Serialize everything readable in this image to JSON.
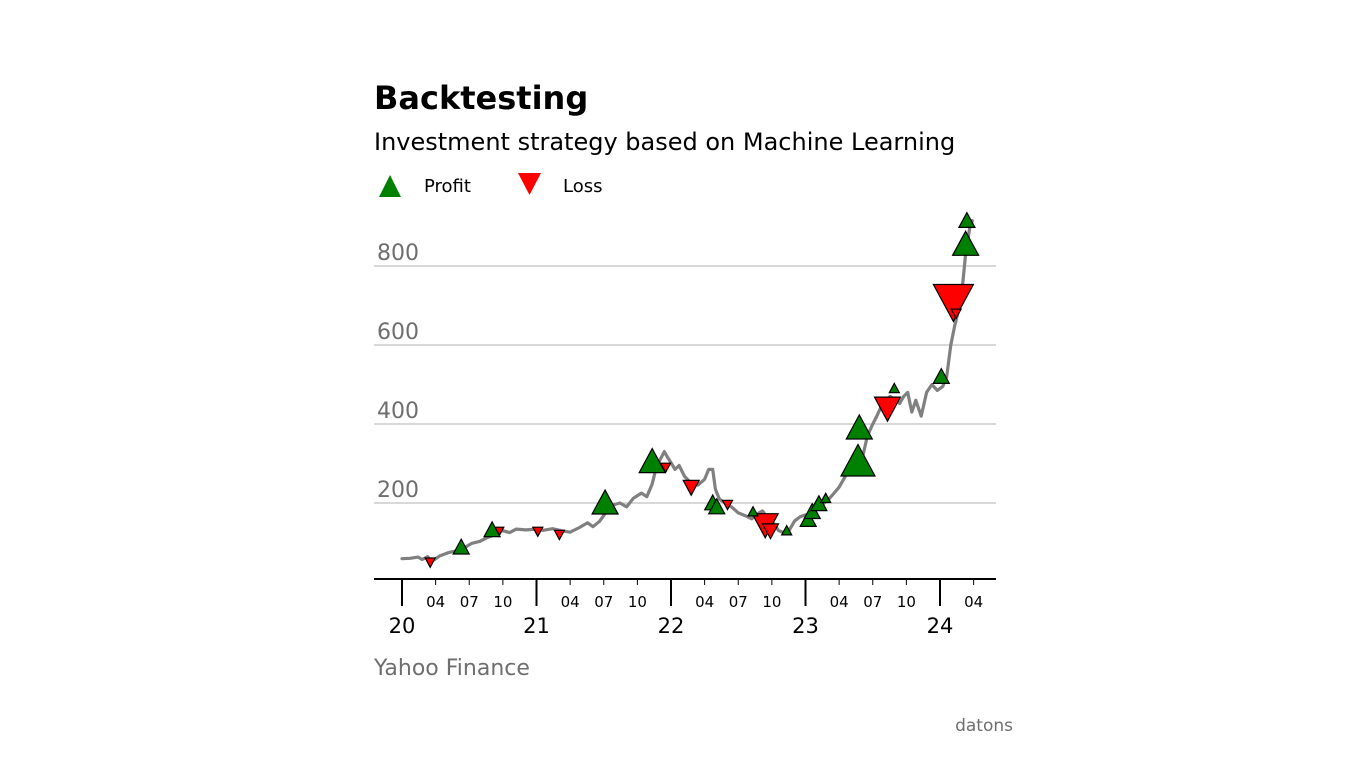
{
  "chart_data": {
    "type": "line",
    "title": "Backtesting",
    "subtitle": "Investment strategy based on Machine Learning",
    "legend": [
      {
        "label": "Profit",
        "marker": "triangle-up",
        "color": "#008000"
      },
      {
        "label": "Loss",
        "marker": "triangle-down",
        "color": "#ff0000"
      }
    ],
    "legend_placement": "top-left",
    "ylim": [
      0,
      950
    ],
    "yticks": [
      200,
      400,
      600,
      800
    ],
    "grid": "horizontal",
    "x_range": [
      "2020-01",
      "2024-06"
    ],
    "x_major_ticks": [
      {
        "x": 2020.0,
        "label": "20"
      },
      {
        "x": 2021.0,
        "label": "21"
      },
      {
        "x": 2022.0,
        "label": "22"
      },
      {
        "x": 2023.0,
        "label": "23"
      },
      {
        "x": 2024.0,
        "label": "24"
      }
    ],
    "x_minor_ticks": [
      {
        "x": 2020.25,
        "label": "04"
      },
      {
        "x": 2020.5,
        "label": "07"
      },
      {
        "x": 2020.75,
        "label": "10"
      },
      {
        "x": 2021.25,
        "label": "04"
      },
      {
        "x": 2021.5,
        "label": "07"
      },
      {
        "x": 2021.75,
        "label": "10"
      },
      {
        "x": 2022.25,
        "label": "04"
      },
      {
        "x": 2022.5,
        "label": "07"
      },
      {
        "x": 2022.75,
        "label": "10"
      },
      {
        "x": 2023.25,
        "label": "04"
      },
      {
        "x": 2023.5,
        "label": "07"
      },
      {
        "x": 2023.75,
        "label": "10"
      },
      {
        "x": 2024.25,
        "label": "04"
      }
    ],
    "series": [
      {
        "line_color": "#808080",
        "points": [
          [
            2020.0,
            59
          ],
          [
            2020.06,
            60
          ],
          [
            2020.12,
            63
          ],
          [
            2020.15,
            57
          ],
          [
            2020.19,
            64
          ],
          [
            2020.22,
            52
          ],
          [
            2020.28,
            66
          ],
          [
            2020.35,
            75
          ],
          [
            2020.42,
            80
          ],
          [
            2020.47,
            88
          ],
          [
            2020.52,
            98
          ],
          [
            2020.58,
            103
          ],
          [
            2020.63,
            112
          ],
          [
            2020.67,
            117
          ],
          [
            2020.71,
            124
          ],
          [
            2020.75,
            130
          ],
          [
            2020.8,
            125
          ],
          [
            2020.85,
            134
          ],
          [
            2020.92,
            132
          ],
          [
            2021.0,
            134
          ],
          [
            2021.05,
            131
          ],
          [
            2021.12,
            135
          ],
          [
            2021.18,
            130
          ],
          [
            2021.25,
            126
          ],
          [
            2021.32,
            138
          ],
          [
            2021.38,
            150
          ],
          [
            2021.42,
            140
          ],
          [
            2021.47,
            154
          ],
          [
            2021.52,
            178
          ],
          [
            2021.57,
            195
          ],
          [
            2021.62,
            200
          ],
          [
            2021.67,
            190
          ],
          [
            2021.72,
            212
          ],
          [
            2021.78,
            225
          ],
          [
            2021.82,
            216
          ],
          [
            2021.86,
            248
          ],
          [
            2021.89,
            290
          ],
          [
            2021.92,
            310
          ],
          [
            2021.95,
            330
          ],
          [
            2021.97,
            318
          ],
          [
            2022.0,
            302
          ],
          [
            2022.03,
            285
          ],
          [
            2022.06,
            295
          ],
          [
            2022.1,
            268
          ],
          [
            2022.15,
            250
          ],
          [
            2022.2,
            245
          ],
          [
            2022.25,
            260
          ],
          [
            2022.28,
            285
          ],
          [
            2022.31,
            285
          ],
          [
            2022.33,
            235
          ],
          [
            2022.36,
            210
          ],
          [
            2022.4,
            200
          ],
          [
            2022.45,
            190
          ],
          [
            2022.5,
            175
          ],
          [
            2022.55,
            168
          ],
          [
            2022.6,
            160
          ],
          [
            2022.64,
            172
          ],
          [
            2022.68,
            180
          ],
          [
            2022.72,
            162
          ],
          [
            2022.76,
            150
          ],
          [
            2022.8,
            130
          ],
          [
            2022.84,
            125
          ],
          [
            2022.88,
            132
          ],
          [
            2022.92,
            155
          ],
          [
            2022.96,
            165
          ],
          [
            2023.0,
            170
          ],
          [
            2023.04,
            162
          ],
          [
            2023.08,
            185
          ],
          [
            2023.12,
            195
          ],
          [
            2023.16,
            205
          ],
          [
            2023.2,
            220
          ],
          [
            2023.25,
            240
          ],
          [
            2023.3,
            270
          ],
          [
            2023.34,
            280
          ],
          [
            2023.38,
            282
          ],
          [
            2023.42,
            310
          ],
          [
            2023.46,
            370
          ],
          [
            2023.5,
            400
          ],
          [
            2023.53,
            420
          ],
          [
            2023.57,
            450
          ],
          [
            2023.6,
            462
          ],
          [
            2023.63,
            470
          ],
          [
            2023.67,
            460
          ],
          [
            2023.7,
            452
          ],
          [
            2023.73,
            470
          ],
          [
            2023.76,
            480
          ],
          [
            2023.79,
            430
          ],
          [
            2023.82,
            460
          ],
          [
            2023.86,
            420
          ],
          [
            2023.9,
            480
          ],
          [
            2023.94,
            500
          ],
          [
            2023.98,
            485
          ],
          [
            2024.02,
            495
          ],
          [
            2024.05,
            520
          ],
          [
            2024.08,
            600
          ],
          [
            2024.11,
            650
          ],
          [
            2024.14,
            690
          ],
          [
            2024.17,
            760
          ],
          [
            2024.19,
            830
          ],
          [
            2024.2,
            850
          ],
          [
            2024.22,
            895
          ],
          [
            2024.24,
            915
          ]
        ]
      }
    ],
    "profit_markers": [
      {
        "x": 2020.44,
        "y": 88,
        "size": "small"
      },
      {
        "x": 2020.67,
        "y": 132,
        "size": "small"
      },
      {
        "x": 2021.51,
        "y": 200,
        "size": "medium"
      },
      {
        "x": 2021.86,
        "y": 305,
        "size": "medium"
      },
      {
        "x": 2022.31,
        "y": 200,
        "size": "small"
      },
      {
        "x": 2022.34,
        "y": 190,
        "size": "small"
      },
      {
        "x": 2022.61,
        "y": 178,
        "size": "tiny"
      },
      {
        "x": 2022.86,
        "y": 130,
        "size": "tiny"
      },
      {
        "x": 2023.02,
        "y": 158,
        "size": "small"
      },
      {
        "x": 2023.05,
        "y": 178,
        "size": "small"
      },
      {
        "x": 2023.1,
        "y": 198,
        "size": "small"
      },
      {
        "x": 2023.15,
        "y": 212,
        "size": "tiny"
      },
      {
        "x": 2023.39,
        "y": 305,
        "size": "large"
      },
      {
        "x": 2023.4,
        "y": 390,
        "size": "medium"
      },
      {
        "x": 2023.66,
        "y": 490,
        "size": "tiny"
      },
      {
        "x": 2024.01,
        "y": 520,
        "size": "small"
      },
      {
        "x": 2024.19,
        "y": 855,
        "size": "medium"
      },
      {
        "x": 2024.2,
        "y": 915,
        "size": "small"
      }
    ],
    "loss_markers": [
      {
        "x": 2020.21,
        "y": 50,
        "size": "tiny"
      },
      {
        "x": 2020.72,
        "y": 128,
        "size": "tiny"
      },
      {
        "x": 2021.01,
        "y": 128,
        "size": "tiny"
      },
      {
        "x": 2021.17,
        "y": 120,
        "size": "tiny"
      },
      {
        "x": 2021.96,
        "y": 290,
        "size": "tiny"
      },
      {
        "x": 2022.15,
        "y": 240,
        "size": "small"
      },
      {
        "x": 2022.42,
        "y": 196,
        "size": "tiny"
      },
      {
        "x": 2022.7,
        "y": 145,
        "size": "medium"
      },
      {
        "x": 2022.74,
        "y": 130,
        "size": "small"
      },
      {
        "x": 2023.61,
        "y": 440,
        "size": "medium"
      },
      {
        "x": 2024.1,
        "y": 710,
        "size": "xlarge"
      },
      {
        "x": 2024.12,
        "y": 680,
        "size": "tiny"
      }
    ]
  },
  "source": "Yahoo Finance",
  "brand": "datons"
}
